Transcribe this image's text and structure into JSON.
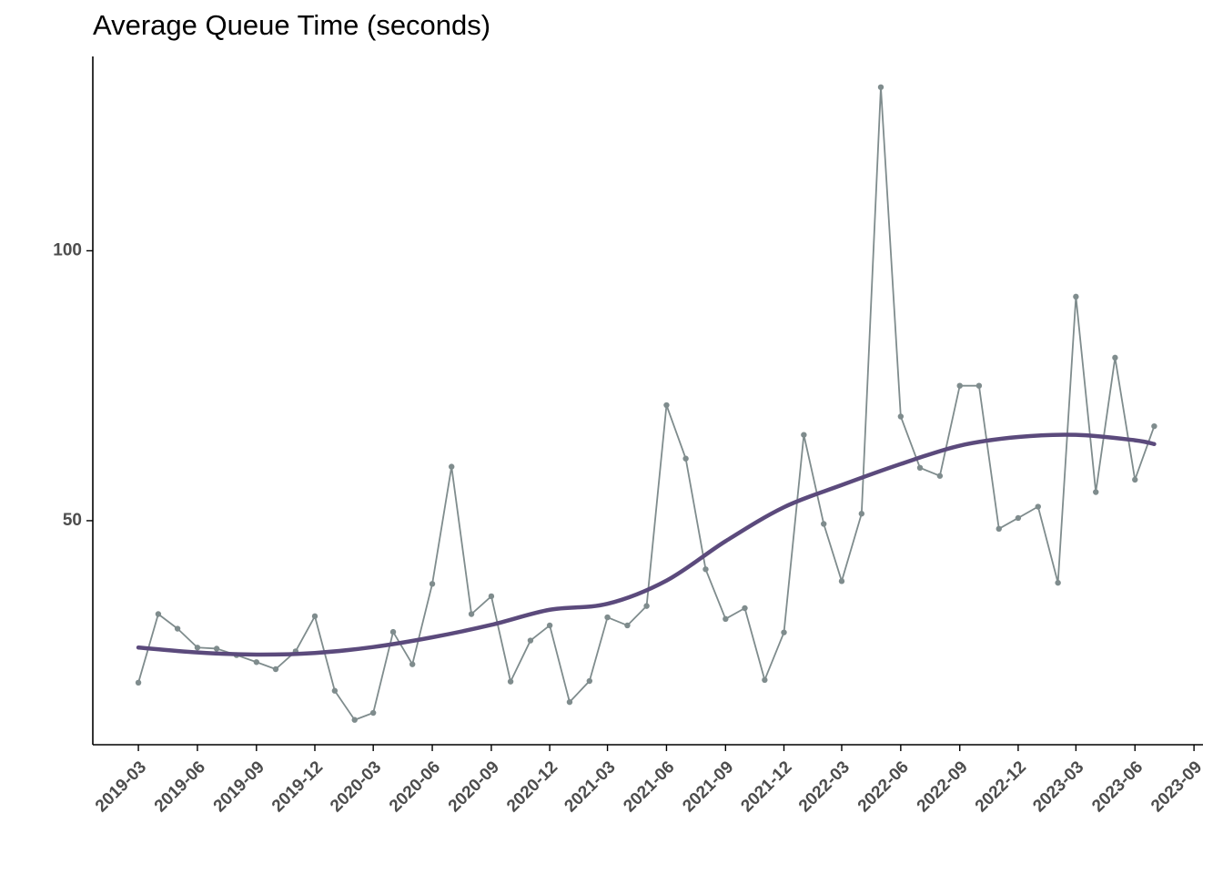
{
  "chart_data": {
    "type": "line",
    "title": "Average Queue Time (seconds)",
    "xlabel": "",
    "ylabel": "",
    "x_ticks": [
      "2019-03",
      "2019-06",
      "2019-09",
      "2019-12",
      "2020-03",
      "2020-06",
      "2020-09",
      "2020-12",
      "2021-03",
      "2021-06",
      "2021-09",
      "2021-12",
      "2022-03",
      "2022-06",
      "2022-09",
      "2022-12",
      "2023-03",
      "2023-06",
      "2023-09"
    ],
    "y_ticks": [
      50,
      100
    ],
    "xlim": [
      "2018-12-20",
      "2023-09-15"
    ],
    "ylim": [
      8.5,
      136
    ],
    "grid": false,
    "legend": "none",
    "colors": {
      "observed": "#7f8c8d",
      "trend": "#5b4a7c",
      "axis": "#000000",
      "tick_label": "#4d4d4d"
    },
    "series": [
      {
        "x": [
          "2019-03",
          "2019-04",
          "2019-05",
          "2019-06",
          "2019-07",
          "2019-08",
          "2019-09",
          "2019-10",
          "2019-11",
          "2019-12",
          "2020-01",
          "2020-02",
          "2020-03",
          "2020-04",
          "2020-05",
          "2020-06",
          "2020-07",
          "2020-08",
          "2020-09",
          "2020-10",
          "2020-11",
          "2020-12",
          "2021-01",
          "2021-02",
          "2021-03",
          "2021-04",
          "2021-05",
          "2021-06",
          "2021-07",
          "2021-08",
          "2021-09",
          "2021-10",
          "2021-11",
          "2021-12",
          "2022-01",
          "2022-02",
          "2022-03",
          "2022-04",
          "2022-05",
          "2022-06",
          "2022-07",
          "2022-08",
          "2022-09",
          "2022-10",
          "2022-11",
          "2022-12",
          "2023-01",
          "2023-02",
          "2023-03",
          "2023-04",
          "2023-05",
          "2023-06",
          "2023-07"
        ],
        "values": [
          20,
          32.7,
          30,
          26.5,
          26.3,
          25.1,
          23.8,
          22.5,
          25.8,
          32.3,
          18.5,
          13.1,
          14.4,
          29.4,
          23.4,
          38.3,
          60,
          32.7,
          36,
          20.2,
          27.8,
          30.6,
          16.4,
          20.3,
          32.1,
          30.6,
          34.2,
          71.4,
          61.5,
          41,
          31.8,
          33.8,
          20.5,
          29.3,
          65.9,
          49.4,
          38.8,
          51.3,
          130.3,
          69.3,
          59.8,
          58.3,
          75,
          75,
          48.5,
          50.5,
          52.6,
          38.5,
          91.5,
          55.3,
          80.2,
          57.6,
          67.5
        ],
        "style": "thin line with points"
      },
      {
        "x": [
          "2019-03",
          "2019-06",
          "2019-09",
          "2019-12",
          "2020-03",
          "2020-06",
          "2020-09",
          "2020-12",
          "2021-03",
          "2021-06",
          "2021-09",
          "2021-12",
          "2022-03",
          "2022-06",
          "2022-09",
          "2022-12",
          "2023-03",
          "2023-06",
          "2023-07"
        ],
        "values": [
          26.5,
          25.6,
          25.2,
          25.5,
          26.6,
          28.4,
          30.7,
          33.5,
          34.6,
          38.9,
          46.2,
          52.5,
          56.6,
          60.5,
          63.9,
          65.5,
          65.9,
          64.9,
          64.2
        ],
        "style": "thick smoothed trend"
      }
    ]
  }
}
